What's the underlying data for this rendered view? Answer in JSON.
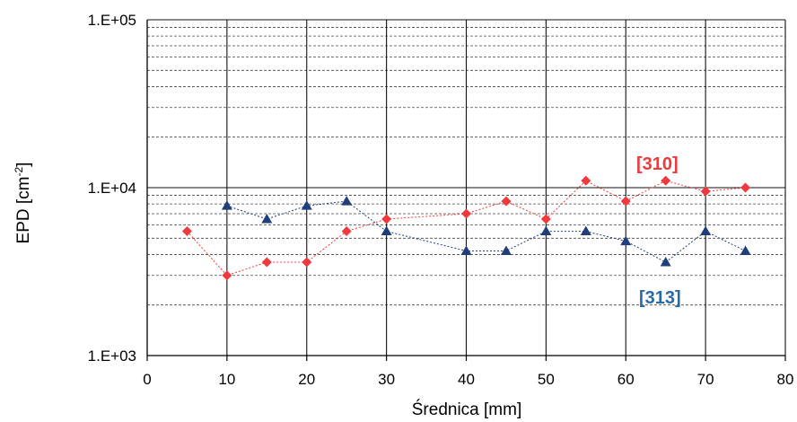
{
  "chart_data": {
    "type": "line",
    "title": "",
    "xlabel": "Średnica [mm]",
    "ylabel": "EPD [cm-2]",
    "ylabel_main": "EPD [cm",
    "ylabel_sup": "-2",
    "ylabel_end": "]",
    "x_range": [
      0,
      80
    ],
    "x_ticks": [
      "0",
      "10",
      "20",
      "30",
      "40",
      "50",
      "60",
      "70",
      "80"
    ],
    "y_scale": "log",
    "y_range": [
      1000,
      100000
    ],
    "y_ticks": [
      "1.E+03",
      "1.E+04",
      "1.E+05"
    ],
    "grid": true,
    "series": [
      {
        "name": "[310]",
        "color": "#f0393c",
        "marker": "diamond",
        "x": [
          5,
          10,
          15,
          20,
          25,
          30,
          40,
          45,
          50,
          55,
          60,
          65,
          70,
          75
        ],
        "y": [
          5500,
          3000,
          3600,
          3600,
          5500,
          6500,
          7000,
          8300,
          6500,
          11000,
          8300,
          11000,
          9500,
          10000
        ]
      },
      {
        "name": "[313]",
        "color": "#1f3e7a",
        "label_color": "#2a6aa5",
        "marker": "triangle",
        "x": [
          10,
          15,
          20,
          25,
          30,
          40,
          45,
          50,
          55,
          60,
          65,
          70,
          75
        ],
        "y": [
          7800,
          6500,
          7800,
          8300,
          5500,
          4200,
          4200,
          5500,
          5500,
          4800,
          3600,
          5500,
          4200
        ]
      }
    ]
  }
}
